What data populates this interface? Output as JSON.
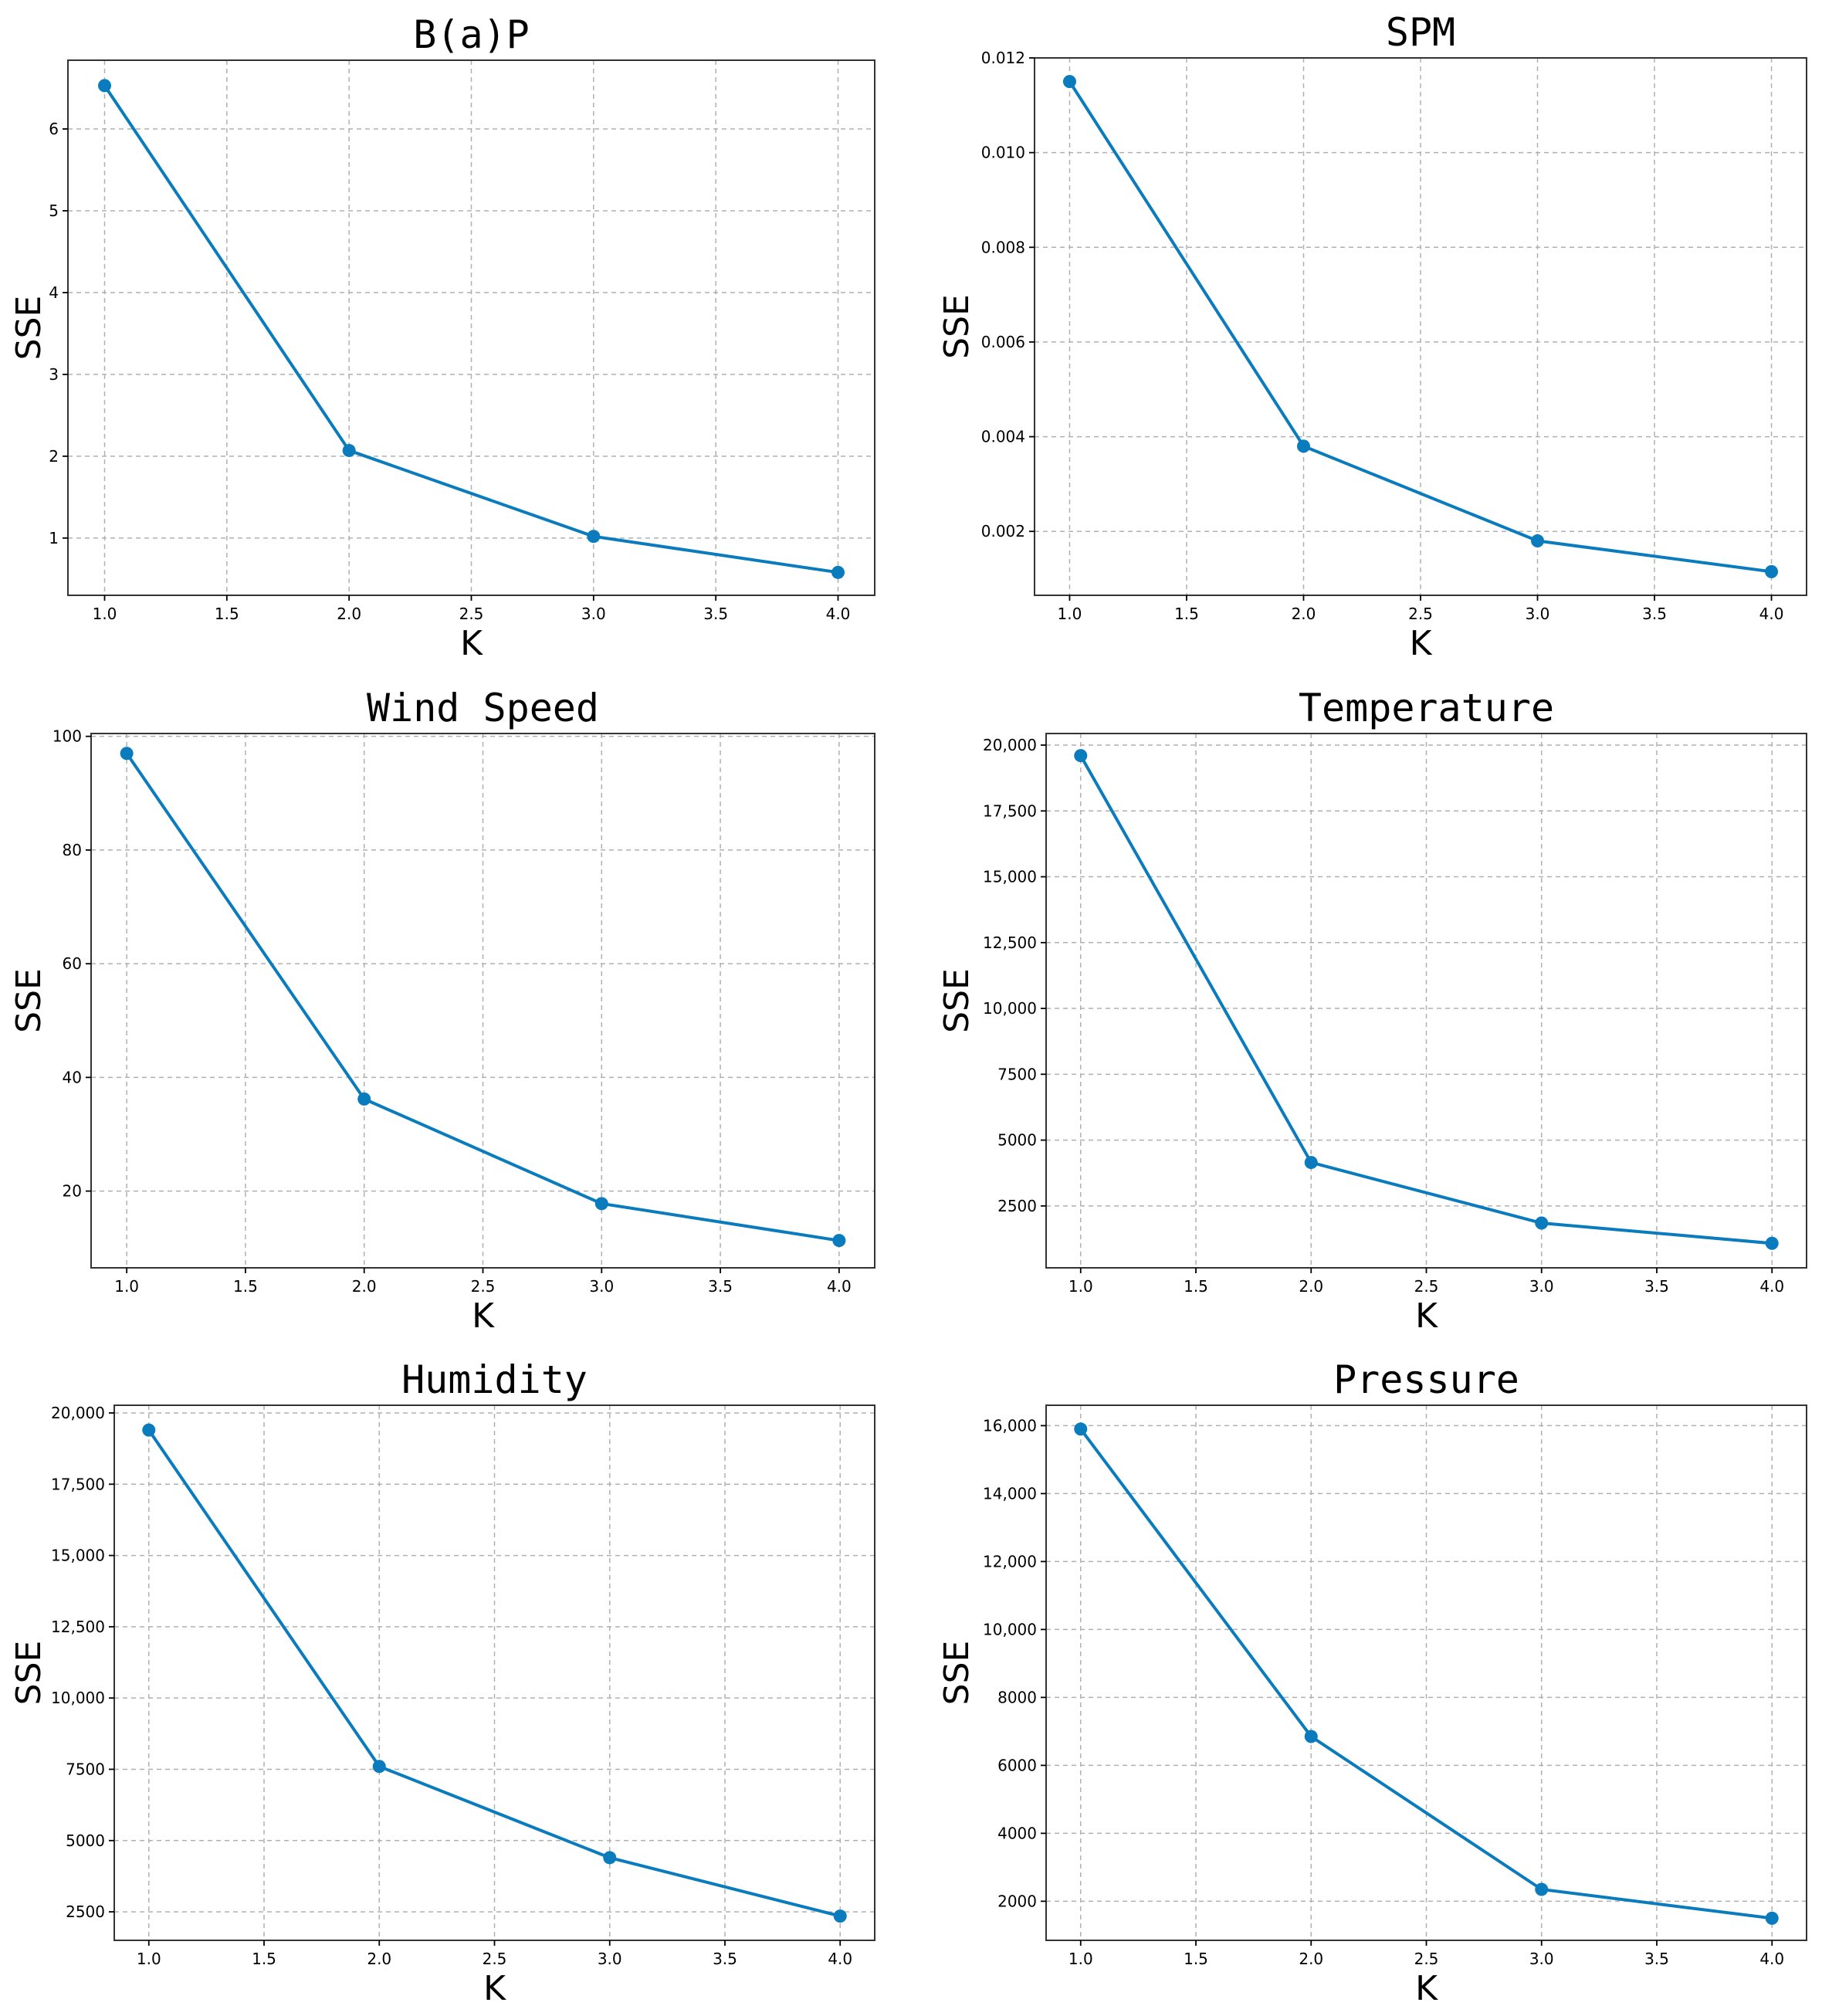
{
  "chart_data": [
    {
      "type": "line",
      "title": "B(a)P",
      "xlabel": "K",
      "ylabel": "SSE",
      "x": [
        1.0,
        2.0,
        3.0,
        4.0
      ],
      "values": [
        6.53,
        2.07,
        1.02,
        0.58
      ],
      "xlim": [
        0.85,
        4.15
      ],
      "ylim": [
        0.3,
        6.84
      ],
      "xticks": [
        1.0,
        1.5,
        2.0,
        2.5,
        3.0,
        3.5,
        4.0
      ],
      "xtick_labels": [
        "1.0",
        "1.5",
        "2.0",
        "2.5",
        "3.0",
        "3.5",
        "4.0"
      ],
      "yticks": [
        1,
        2,
        3,
        4,
        5,
        6
      ],
      "ytick_labels": [
        "1",
        "2",
        "3",
        "4",
        "5",
        "6"
      ],
      "grid": true,
      "color": "#0a7bbd"
    },
    {
      "type": "line",
      "title": "SPM",
      "xlabel": "K",
      "ylabel": "SSE",
      "x": [
        1.0,
        2.0,
        3.0,
        4.0
      ],
      "values": [
        0.0115,
        0.0038,
        0.0018,
        0.00115
      ],
      "xlim": [
        0.85,
        4.15
      ],
      "ylim": [
        0.00065,
        0.012
      ],
      "xticks": [
        1.0,
        1.5,
        2.0,
        2.5,
        3.0,
        3.5,
        4.0
      ],
      "xtick_labels": [
        "1.0",
        "1.5",
        "2.0",
        "2.5",
        "3.0",
        "3.5",
        "4.0"
      ],
      "yticks": [
        0.002,
        0.004,
        0.006,
        0.008,
        0.01,
        0.012
      ],
      "ytick_labels": [
        "0.002",
        "0.004",
        "0.006",
        "0.008",
        "0.010",
        "0.012"
      ],
      "grid": true,
      "color": "#0a7bbd"
    },
    {
      "type": "line",
      "title": "Wind Speed",
      "xlabel": "K",
      "ylabel": "SSE",
      "x": [
        1.0,
        2.0,
        3.0,
        4.0
      ],
      "values": [
        97.0,
        36.2,
        17.8,
        11.3
      ],
      "xlim": [
        0.85,
        4.15
      ],
      "ylim": [
        6.5,
        100.5
      ],
      "xticks": [
        1.0,
        1.5,
        2.0,
        2.5,
        3.0,
        3.5,
        4.0
      ],
      "xtick_labels": [
        "1.0",
        "1.5",
        "2.0",
        "2.5",
        "3.0",
        "3.5",
        "4.0"
      ],
      "yticks": [
        20,
        40,
        60,
        80,
        100
      ],
      "ytick_labels": [
        "20",
        "40",
        "60",
        "80",
        "100"
      ],
      "grid": true,
      "color": "#0a7bbd"
    },
    {
      "type": "line",
      "title": "Temperature",
      "xlabel": "K",
      "ylabel": "SSE",
      "x": [
        1.0,
        2.0,
        3.0,
        4.0
      ],
      "values": [
        19600,
        4150,
        1850,
        1080
      ],
      "xlim": [
        0.85,
        4.15
      ],
      "ylim": [
        150,
        20440
      ],
      "xticks": [
        1.0,
        1.5,
        2.0,
        2.5,
        3.0,
        3.5,
        4.0
      ],
      "xtick_labels": [
        "1.0",
        "1.5",
        "2.0",
        "2.5",
        "3.0",
        "3.5",
        "4.0"
      ],
      "yticks": [
        2500,
        5000,
        7500,
        10000,
        12500,
        15000,
        17500,
        20000
      ],
      "ytick_labels": [
        "2500",
        "5000",
        "7500",
        "10,000",
        "12,500",
        "15,000",
        "17,500",
        "20,000"
      ],
      "grid": true,
      "color": "#0a7bbd"
    },
    {
      "type": "line",
      "title": "Humidity",
      "xlabel": "K",
      "ylabel": "SSE",
      "x": [
        1.0,
        2.0,
        3.0,
        4.0
      ],
      "values": [
        19400,
        7600,
        4400,
        2350
      ],
      "xlim": [
        0.85,
        4.15
      ],
      "ylim": [
        1500,
        20270
      ],
      "xticks": [
        1.0,
        1.5,
        2.0,
        2.5,
        3.0,
        3.5,
        4.0
      ],
      "xtick_labels": [
        "1.0",
        "1.5",
        "2.0",
        "2.5",
        "3.0",
        "3.5",
        "4.0"
      ],
      "yticks": [
        2500,
        5000,
        7500,
        10000,
        12500,
        15000,
        17500,
        20000
      ],
      "ytick_labels": [
        "2500",
        "5000",
        "7500",
        "10,000",
        "12,500",
        "15,000",
        "17,500",
        "20,000"
      ],
      "grid": true,
      "color": "#0a7bbd"
    },
    {
      "type": "line",
      "title": "Pressure",
      "xlabel": "K",
      "ylabel": "SSE",
      "x": [
        1.0,
        2.0,
        3.0,
        4.0
      ],
      "values": [
        15900,
        6850,
        2350,
        1500
      ],
      "xlim": [
        0.85,
        4.15
      ],
      "ylim": [
        850,
        16600
      ],
      "xticks": [
        1.0,
        1.5,
        2.0,
        2.5,
        3.0,
        3.5,
        4.0
      ],
      "xtick_labels": [
        "1.0",
        "1.5",
        "2.0",
        "2.5",
        "3.0",
        "3.5",
        "4.0"
      ],
      "yticks": [
        2000,
        4000,
        6000,
        8000,
        10000,
        12000,
        14000,
        16000
      ],
      "ytick_labels": [
        "2000",
        "4000",
        "6000",
        "8000",
        "10,000",
        "12,000",
        "14,000",
        "16,000"
      ],
      "grid": true,
      "color": "#0a7bbd"
    }
  ]
}
